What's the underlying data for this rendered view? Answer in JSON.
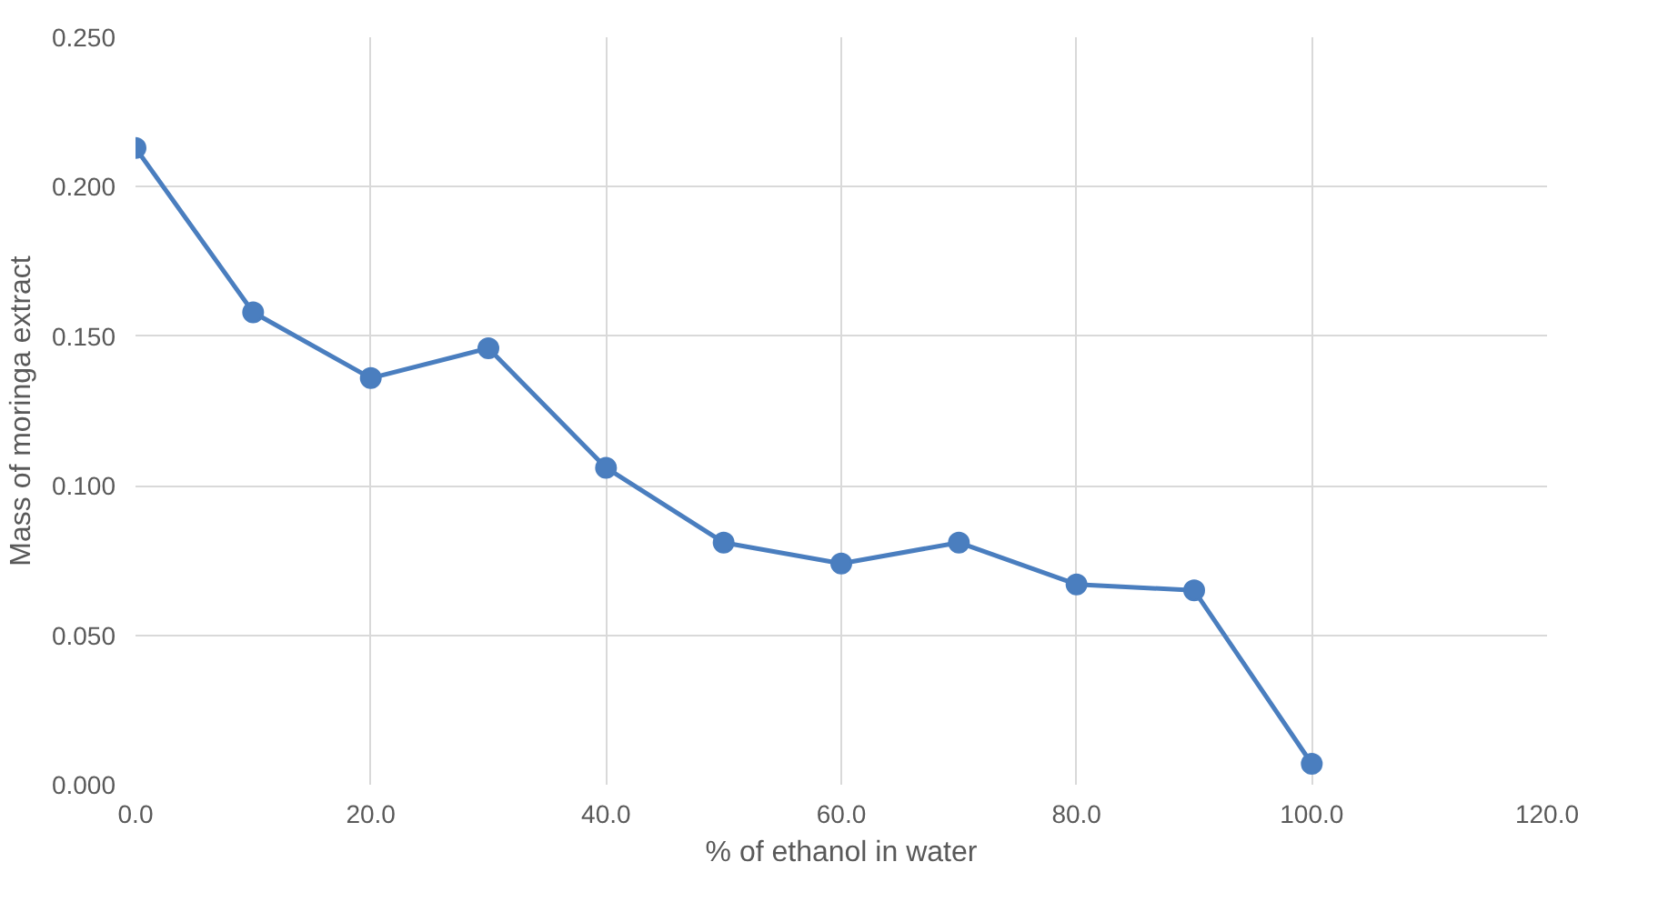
{
  "chart_data": {
    "type": "line",
    "xlabel": "% of ethanol in water",
    "ylabel": "Mass of moringa extract",
    "x": [
      0,
      10,
      20,
      30,
      40,
      50,
      60,
      70,
      80,
      90,
      100
    ],
    "series": [
      {
        "color": "#4a7ebf",
        "values": [
          0.213,
          0.158,
          0.136,
          0.146,
          0.106,
          0.081,
          0.074,
          0.081,
          0.067,
          0.065,
          0.007
        ]
      }
    ],
    "xlim": [
      0,
      120
    ],
    "ylim": [
      0,
      0.25
    ],
    "xticks": [
      {
        "value": 0,
        "label": "0.0"
      },
      {
        "value": 20,
        "label": "20.0"
      },
      {
        "value": 40,
        "label": "40.0"
      },
      {
        "value": 60,
        "label": "60.0"
      },
      {
        "value": 80,
        "label": "80.0"
      },
      {
        "value": 100,
        "label": "100.0"
      },
      {
        "value": 120,
        "label": "120.0"
      }
    ],
    "yticks": [
      {
        "value": 0,
        "label": "0.000"
      },
      {
        "value": 0.05,
        "label": "0.050"
      },
      {
        "value": 0.1,
        "label": "0.100"
      },
      {
        "value": 0.15,
        "label": "0.150"
      },
      {
        "value": 0.2,
        "label": "0.200"
      },
      {
        "value": 0.25,
        "label": "0.250"
      }
    ],
    "grid": true,
    "marker": "circle",
    "line_style": "solid"
  }
}
